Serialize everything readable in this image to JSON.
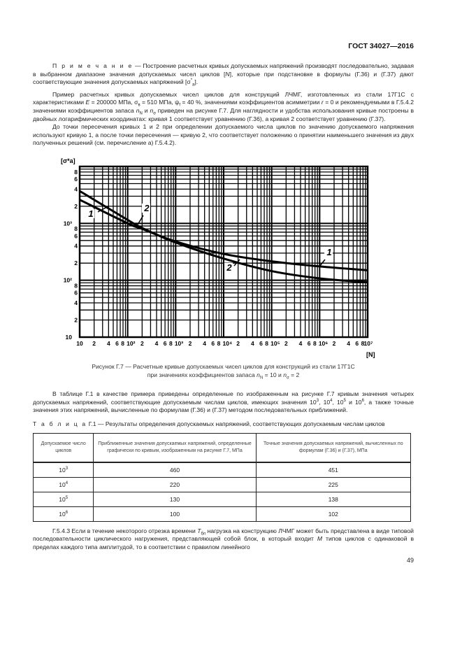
{
  "header": {
    "doc_id": "ГОСТ 34027—2016"
  },
  "note": {
    "label": "П р и м е ч а н и е",
    "t1": " — Построение расчетных кривых допускаемых напряжений производят последовательно, задавая в выбранном диапазоне значения допускаемых чисел циклов [",
    "N": "N",
    "t2": "], которые при подстановке в формулы (Г.36) и (Г.37) дают соответствующие значения допускаемых напряжений [σ",
    "sup": "*",
    "sub": "a",
    "t3": "]."
  },
  "para2": {
    "t1": "Пример расчетных кривых допускаемых чисел циклов для конструкций ЛЧМГ, изготовленных из стали 17Г1С с характеристиками ",
    "E": "E",
    "t2": " = 200000 МПа, σ",
    "sub1": "в",
    "t3": " = 510 МПа, ψ",
    "sub2": "f",
    "t4": " = 40 %, значениями коэффициентов асимметрии ",
    "r": "r",
    "t5": " = 0 и рекомендуемыми в Г.5.4.2 значениями коэффициентов запаса ",
    "n1": "n",
    "sub3": "N",
    "t6": " и ",
    "n2": "n",
    "sub4": "σ",
    "t7": " приведен на рисунке Г.7. Для наглядности и удобства использования кривые построены в двойных логарифмических координатах: кривая 1 соответствует уравнению (Г.36), а кривая 2 соответствует уравнению (Г.37)."
  },
  "para3": "До точки пересечения кривых 1 и 2 при определении допускаемого числа циклов по значению допускаемого напряжения используют кривую 1, а после точки пересечения — кривую 2, что соответствует положению о принятии наименьшего значения из двух полученных решений (см. перечисление а) Г.5.4.2).",
  "chart_data": {
    "type": "line",
    "xscale": "log",
    "yscale": "log",
    "xlim": [
      10,
      10000000
    ],
    "ylim": [
      10,
      10000
    ],
    "grid": true,
    "ylabel": "[σ*a]",
    "xlabel": "[N]",
    "xtick_labels": [
      "10",
      "2",
      "4",
      "6",
      "8",
      "10²",
      "2",
      "4",
      "6",
      "8",
      "10³",
      "2",
      "4",
      "6",
      "8",
      "10⁴",
      "2",
      "4",
      "6",
      "8",
      "10⁵",
      "2",
      "4",
      "6",
      "8",
      "10⁶",
      "2",
      "4",
      "6",
      "8",
      "10⁷"
    ],
    "ytick_labels": [
      "10",
      "2",
      "4",
      "6",
      "8",
      "10²",
      "2",
      "4",
      "6",
      "8",
      "10³",
      "2",
      "4",
      "6",
      "8"
    ],
    "series": [
      {
        "name": "1",
        "x": [
          10,
          100,
          200,
          1000,
          10000,
          100000,
          1000000,
          10000000
        ],
        "y": [
          2600,
          1000,
          800,
          480,
          290,
          215,
          175,
          150
        ]
      },
      {
        "name": "2",
        "x": [
          10,
          100,
          200,
          1000,
          10000,
          100000,
          1000000,
          10000000
        ],
        "y": [
          3700,
          1150,
          830,
          460,
          240,
          145,
          108,
          92
        ]
      }
    ]
  },
  "caption": {
    "line1": "Рисунок Г.7 — Расчетные кривые допускаемых чисел циклов для конструкций из стали 17Г1С",
    "l2a": "при значениях коэффициентов запаса ",
    "n1": "n",
    "s1": "N",
    "l2b": " = 10 и ",
    "n2": "n",
    "s2": "σ",
    "l2c": " = 2"
  },
  "para4": {
    "t1": "В таблице Г.1 в качестве примера приведены определенные по изображенным на рисунке Г.7 кривым значения четырех допускаемых напряжений, соответствующие допускаемым числам циклов, имеющих значения 10",
    "s1": "3",
    "t2": ", 10",
    "s2": "4",
    "t3": ", 10",
    "s3": "5",
    "t4": " и 10",
    "s4": "6",
    "t5": ", а также точные значения этих напряжений, вычисленные по формулам (Г.36) и (Г.37) методом последовательных приближений."
  },
  "table": {
    "label": "Т а б л и ц а",
    "title": " Г.1 — Результаты определения допускаемых напряжений, соответствующих допускаемым числам циклов",
    "headers": [
      "Допускаемое число циклов",
      "Приближенные значения допускаемых напряжений, определенные графически по кривым, изображенным на рисунке Г.7, МПа",
      "Точные значения допускаемых напряжений, вычисленных по формулам (Г.36) и (Г.37), МПа"
    ],
    "rows": [
      {
        "base": "10",
        "exp": "3",
        "approx": "460",
        "exact": "451"
      },
      {
        "base": "10",
        "exp": "4",
        "approx": "220",
        "exact": "225"
      },
      {
        "base": "10",
        "exp": "5",
        "approx": "130",
        "exact": "138"
      },
      {
        "base": "10",
        "exp": "6",
        "approx": "100",
        "exact": "102"
      }
    ]
  },
  "para5": {
    "t1": "Г.5.4.3 Если в течение некоторого отрезка времени ",
    "T": "T",
    "sub": "бл",
    "t2": " нагрузка на конструкцию ЛЧМГ может быть представлена в виде типовой последовательности циклического нагружения, представляющей собой блок, в который входит ",
    "M": "M",
    "t3": " типов циклов с одинаковой в пределах каждого типа амплитудой, то в соответствии с правилом линейного"
  },
  "page_number": "49"
}
